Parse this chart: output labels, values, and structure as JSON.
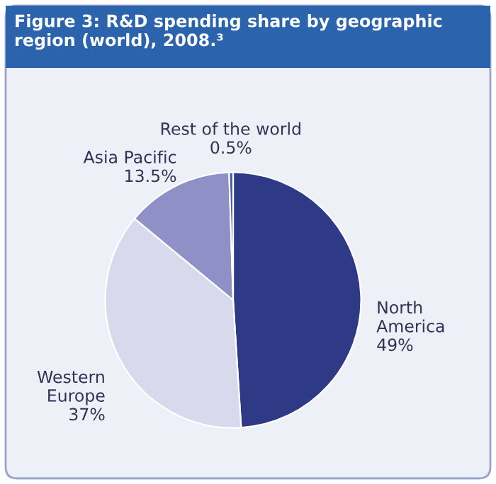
{
  "chart_data": {
    "type": "pie",
    "title": "Figure 3: R&D spending share by geographic region (world), 2008.³",
    "categories": [
      "North America",
      "Western Europe",
      "Asia Pacific",
      "Rest of the world"
    ],
    "values": [
      49,
      37,
      13.5,
      0.5
    ],
    "value_labels": [
      "49%",
      "37%",
      "13.5%",
      "0.5%"
    ],
    "colors": [
      "#2e3a86",
      "#d9d9ee",
      "#8f90c5",
      "#4a5aa8"
    ]
  }
}
